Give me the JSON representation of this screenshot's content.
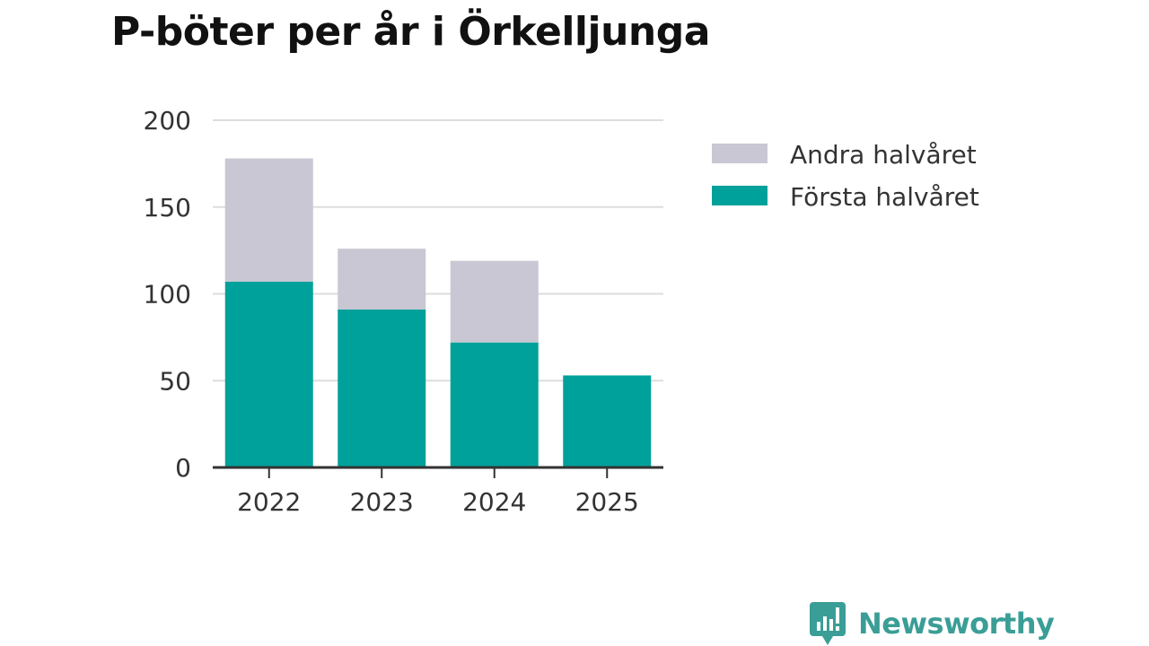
{
  "chart_data": {
    "type": "bar",
    "stacked": true,
    "title": "P-böter per år i Örkelljunga",
    "categories": [
      "2022",
      "2023",
      "2024",
      "2025"
    ],
    "series": [
      {
        "name": "Första halvåret",
        "values": [
          107,
          91,
          72,
          53
        ]
      },
      {
        "name": "Andra halvåret",
        "values": [
          71,
          35,
          47,
          0
        ]
      }
    ],
    "legend": [
      "Andra halvåret",
      "Första halvåret"
    ],
    "legend_position": "right",
    "ylim": [
      0,
      200
    ],
    "yticks": [
      0,
      50,
      100,
      150,
      200
    ],
    "grid": true,
    "xlabel": "",
    "ylabel": ""
  },
  "colors": {
    "forsta": "#00a19a",
    "andra": "#c8c7d3",
    "grid": "#dddddd",
    "axis": "#333333"
  },
  "brand": {
    "name": "Newsworthy",
    "icon": "bar-chart-speech-bubble-icon"
  }
}
